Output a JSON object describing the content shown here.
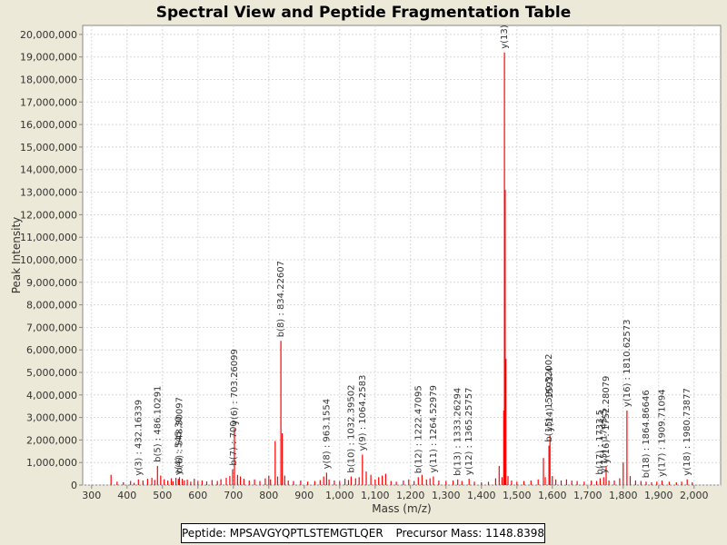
{
  "chart_data": {
    "type": "bar",
    "title": "Spectral View and Peptide Fragmentation Table",
    "xlabel": "Mass (m/z)",
    "ylabel": "Peak Intensity",
    "xlim": [
      275,
      2075
    ],
    "ylim": [
      0,
      20400000
    ],
    "x_ticks": [
      300,
      400,
      500,
      600,
      700,
      800,
      900,
      1000,
      1100,
      1200,
      1300,
      1400,
      1500,
      1600,
      1700,
      1800,
      1900,
      2000
    ],
    "x_tick_labels": [
      "300",
      "400",
      "500",
      "600",
      "700",
      "800",
      "900",
      "1,000",
      "1,100",
      "1,200",
      "1,300",
      "1,400",
      "1,500",
      "1,600",
      "1,700",
      "1,800",
      "1,900",
      "2,000"
    ],
    "y_ticks": [
      0,
      1000000,
      2000000,
      3000000,
      4000000,
      5000000,
      6000000,
      7000000,
      8000000,
      9000000,
      10000000,
      11000000,
      12000000,
      13000000,
      14000000,
      15000000,
      16000000,
      17000000,
      18000000,
      19000000,
      20000000
    ],
    "y_tick_labels": [
      "0",
      "1,000,000",
      "2,000,000",
      "3,000,000",
      "4,000,000",
      "5,000,000",
      "6,000,000",
      "7,000,000",
      "8,000,000",
      "9,000,000",
      "10,000,000",
      "11,000,000",
      "12,000,000",
      "13,000,000",
      "14,000,000",
      "15,000,000",
      "16,000,000",
      "17,000,000",
      "18,000,000",
      "19,000,000",
      "20,000,000"
    ],
    "grid": true,
    "peak_color": "#ff0000",
    "peaks": [
      [
        355,
        450000
      ],
      [
        372,
        150000
      ],
      [
        390,
        120000
      ],
      [
        410,
        180000
      ],
      [
        420,
        100000
      ],
      [
        432.16,
        250000
      ],
      [
        445,
        200000
      ],
      [
        458,
        280000
      ],
      [
        470,
        320000
      ],
      [
        478,
        230000
      ],
      [
        486.1,
        850000
      ],
      [
        495,
        420000
      ],
      [
        505,
        260000
      ],
      [
        515,
        200000
      ],
      [
        525,
        300000
      ],
      [
        530,
        160000
      ],
      [
        538,
        320000
      ],
      [
        545,
        280000
      ],
      [
        548,
        350000
      ],
      [
        556,
        280000
      ],
      [
        562,
        200000
      ],
      [
        570,
        240000
      ],
      [
        580,
        150000
      ],
      [
        590,
        280000
      ],
      [
        600,
        180000
      ],
      [
        612,
        210000
      ],
      [
        625,
        160000
      ],
      [
        640,
        220000
      ],
      [
        655,
        180000
      ],
      [
        665,
        260000
      ],
      [
        680,
        320000
      ],
      [
        690,
        400000
      ],
      [
        698,
        700000
      ],
      [
        703.26,
        2500000
      ],
      [
        712,
        450000
      ],
      [
        720,
        380000
      ],
      [
        730,
        280000
      ],
      [
        745,
        200000
      ],
      [
        760,
        250000
      ],
      [
        775,
        180000
      ],
      [
        790,
        300000
      ],
      [
        800,
        420000
      ],
      [
        805,
        250000
      ],
      [
        818,
        1950000
      ],
      [
        825,
        380000
      ],
      [
        834.23,
        6400000
      ],
      [
        838,
        2300000
      ],
      [
        845,
        420000
      ],
      [
        855,
        200000
      ],
      [
        870,
        180000
      ],
      [
        890,
        200000
      ],
      [
        910,
        150000
      ],
      [
        930,
        180000
      ],
      [
        945,
        220000
      ],
      [
        955,
        380000
      ],
      [
        963.16,
        550000
      ],
      [
        970,
        250000
      ],
      [
        985,
        200000
      ],
      [
        1000,
        180000
      ],
      [
        1015,
        280000
      ],
      [
        1025,
        220000
      ],
      [
        1032.4,
        380000
      ],
      [
        1045,
        300000
      ],
      [
        1055,
        350000
      ],
      [
        1064.26,
        1350000
      ],
      [
        1075,
        600000
      ],
      [
        1088,
        450000
      ],
      [
        1100,
        250000
      ],
      [
        1110,
        350000
      ],
      [
        1120,
        420000
      ],
      [
        1130,
        500000
      ],
      [
        1145,
        180000
      ],
      [
        1160,
        150000
      ],
      [
        1180,
        200000
      ],
      [
        1195,
        250000
      ],
      [
        1210,
        180000
      ],
      [
        1222,
        350000
      ],
      [
        1232.47,
        450000
      ],
      [
        1245,
        250000
      ],
      [
        1255,
        300000
      ],
      [
        1264.53,
        380000
      ],
      [
        1280,
        200000
      ],
      [
        1300,
        180000
      ],
      [
        1320,
        200000
      ],
      [
        1333.26,
        250000
      ],
      [
        1345,
        180000
      ],
      [
        1365.26,
        280000
      ],
      [
        1380,
        150000
      ],
      [
        1400,
        120000
      ],
      [
        1420,
        150000
      ],
      [
        1440,
        300000
      ],
      [
        1450,
        850000
      ],
      [
        1458,
        350000
      ],
      [
        1463,
        3300000
      ],
      [
        1465,
        19200000
      ],
      [
        1467,
        13100000
      ],
      [
        1469,
        5600000
      ],
      [
        1475,
        400000
      ],
      [
        1485,
        200000
      ],
      [
        1500,
        150000
      ],
      [
        1520,
        180000
      ],
      [
        1540,
        200000
      ],
      [
        1560,
        250000
      ],
      [
        1575,
        1200000
      ],
      [
        1580,
        350000
      ],
      [
        1590.52,
        1750000
      ],
      [
        1593.4,
        2200000
      ],
      [
        1600,
        400000
      ],
      [
        1610,
        250000
      ],
      [
        1625,
        200000
      ],
      [
        1640,
        250000
      ],
      [
        1655,
        200000
      ],
      [
        1670,
        180000
      ],
      [
        1690,
        150000
      ],
      [
        1710,
        200000
      ],
      [
        1725,
        180000
      ],
      [
        1735,
        300000
      ],
      [
        1745,
        350000
      ],
      [
        1752,
        800000
      ],
      [
        1760,
        200000
      ],
      [
        1775,
        200000
      ],
      [
        1790,
        300000
      ],
      [
        1800,
        1000000
      ],
      [
        1810.63,
        3300000
      ],
      [
        1820,
        400000
      ],
      [
        1835,
        200000
      ],
      [
        1850,
        180000
      ],
      [
        1864.87,
        150000
      ],
      [
        1880,
        120000
      ],
      [
        1895,
        150000
      ],
      [
        1909.71,
        200000
      ],
      [
        1930,
        150000
      ],
      [
        1950,
        120000
      ],
      [
        1965,
        150000
      ],
      [
        1980.74,
        250000
      ],
      [
        1995,
        120000
      ]
    ],
    "annotations": [
      {
        "x": 432.16339,
        "y": 250000,
        "label": "y(3) : 432.16339"
      },
      {
        "x": 486.10291,
        "y": 850000,
        "label": "b(5) : 486.10291"
      },
      {
        "x": 545.3,
        "y": 280000,
        "label": "y(4) : 545.30"
      },
      {
        "x": 548.30097,
        "y": 350000,
        "label": "b(6) : 548.30097"
      },
      {
        "x": 700,
        "y": 700000,
        "label": "b(7) : 700"
      },
      {
        "x": 703.26099,
        "y": 2500000,
        "label": "y(6) : 703.26099"
      },
      {
        "x": 834.22607,
        "y": 6400000,
        "label": "b(8) : 834.22607"
      },
      {
        "x": 963.1554,
        "y": 550000,
        "label": "y(8) : 963.1554"
      },
      {
        "x": 1032.39502,
        "y": 380000,
        "label": "b(10) : 1032.39502"
      },
      {
        "x": 1064.2583,
        "y": 1350000,
        "label": "y(9) : 1064.2583"
      },
      {
        "x": 1222.47095,
        "y": 350000,
        "label": "b(12) : 1222.47095"
      },
      {
        "x": 1264.52979,
        "y": 380000,
        "label": "y(11) : 1264.52979"
      },
      {
        "x": 1333.26294,
        "y": 250000,
        "label": "b(13) : 1333.26294"
      },
      {
        "x": 1365.25757,
        "y": 280000,
        "label": "y(12) : 1365.25757"
      },
      {
        "x": 1465,
        "y": 19200000,
        "label": "y(13)"
      },
      {
        "x": 1590.52002,
        "y": 1750000,
        "label": "b(15) : 1590.52002"
      },
      {
        "x": 1593.4,
        "y": 2200000,
        "label": "y(14) : 1593.4"
      },
      {
        "x": 1733.5,
        "y": 300000,
        "label": "b(17) : 1733.5"
      },
      {
        "x": 1745.5,
        "y": 350000,
        "label": "y(15) : 1745.5"
      },
      {
        "x": 1752.28079,
        "y": 800000,
        "label": "y(16) : 1752.28079"
      },
      {
        "x": 1810.62573,
        "y": 3300000,
        "label": "y(16) : 1810.62573"
      },
      {
        "x": 1864.86646,
        "y": 150000,
        "label": "b(18) : 1864.86646"
      },
      {
        "x": 1909.71094,
        "y": 200000,
        "label": "y(17) : 1909.71094"
      },
      {
        "x": 1980.73877,
        "y": 250000,
        "label": "y(18) : 1980.73877"
      }
    ]
  },
  "footer": {
    "peptide_label": "Peptide:",
    "peptide": "MPSAVGYQPTLSTEMGTLQER",
    "precursor_label": "Precursor Mass:",
    "precursor_mass": "1148.8398"
  }
}
